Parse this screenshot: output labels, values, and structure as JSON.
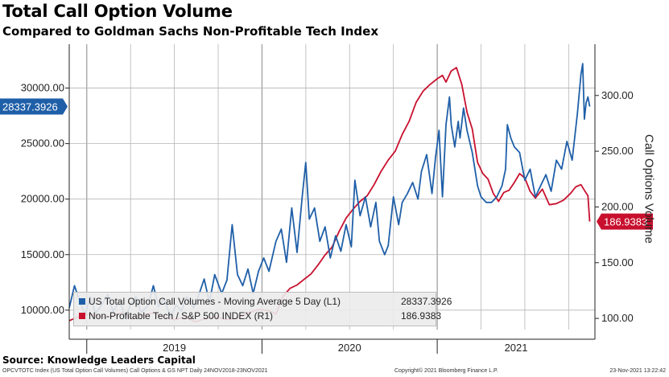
{
  "title": "Total Call Option Volume",
  "subtitle": "Compared to Goldman Sachs Non-Profitable Tech Index",
  "source": "Source: Knowledge Leaders Capital",
  "footer": {
    "left": "OPCVTOTC Index (US Total Option Call Volumes) Call Options & GS NPT  Daily 24NOV2018-23NOV2021",
    "center": "Copyright© 2021 Bloomberg Finance L.P.",
    "right": "23-Nov-2021 13:22:42"
  },
  "colors": {
    "series1": "#1f5fa8",
    "series2": "#c8102e"
  },
  "chart_data": {
    "type": "line",
    "title": "Total Call Option Volume",
    "subtitle": "Compared to Goldman Sachs Non-Profitable Tech Index",
    "xlabel": "",
    "y_left": {
      "ylim": [
        8250,
        33950
      ],
      "ticks": [
        "10000.00",
        "15000.00",
        "20000.00",
        "25000.00",
        "30000.00"
      ]
    },
    "y_right": {
      "label": "Call Options Volume",
      "ylim": [
        90,
        346
      ],
      "ticks": [
        "100.00",
        "150.00",
        "200.00",
        "250.00",
        "300.00"
      ]
    },
    "x_range": [
      2018.9,
      2021.9
    ],
    "x_labels": [
      {
        "label": "2019",
        "x": 2019.5
      },
      {
        "label": "2020",
        "x": 2020.5
      },
      {
        "label": "2021",
        "x": 2021.45
      }
    ],
    "grid": true,
    "legend_position": "bottom-left",
    "series": [
      {
        "name": "US Total Option Call Volumes - Moving Average 5 Day (L1)",
        "legend_value": "28337.3926",
        "last_value_label": "28337.3926",
        "axis": "left",
        "color": "#1f5fa8",
        "points": [
          [
            2018.9,
            10200
          ],
          [
            2018.93,
            12200
          ],
          [
            2018.96,
            10800
          ],
          [
            2018.99,
            9600
          ],
          [
            2019.02,
            11200
          ],
          [
            2019.05,
            9700
          ],
          [
            2019.09,
            10600
          ],
          [
            2019.12,
            11400
          ],
          [
            2019.15,
            9900
          ],
          [
            2019.19,
            10800
          ],
          [
            2019.22,
            9300
          ],
          [
            2019.25,
            10500
          ],
          [
            2019.28,
            11200
          ],
          [
            2019.31,
            9800
          ],
          [
            2019.35,
            10400
          ],
          [
            2019.38,
            12200
          ],
          [
            2019.41,
            10300
          ],
          [
            2019.44,
            11000
          ],
          [
            2019.48,
            9400
          ],
          [
            2019.51,
            10500
          ],
          [
            2019.54,
            9900
          ],
          [
            2019.57,
            11200
          ],
          [
            2019.61,
            10200
          ],
          [
            2019.64,
            11400
          ],
          [
            2019.67,
            12800
          ],
          [
            2019.7,
            10700
          ],
          [
            2019.73,
            13200
          ],
          [
            2019.77,
            11500
          ],
          [
            2019.8,
            12700
          ],
          [
            2019.83,
            17700
          ],
          [
            2019.86,
            13200
          ],
          [
            2019.89,
            12200
          ],
          [
            2019.92,
            13700
          ],
          [
            2019.95,
            11500
          ],
          [
            2019.98,
            13500
          ],
          [
            2020.01,
            14700
          ],
          [
            2020.04,
            13500
          ],
          [
            2020.08,
            16200
          ],
          [
            2020.11,
            17300
          ],
          [
            2020.14,
            14300
          ],
          [
            2020.17,
            19200
          ],
          [
            2020.2,
            15200
          ],
          [
            2020.23,
            20300
          ],
          [
            2020.25,
            23300
          ],
          [
            2020.27,
            18200
          ],
          [
            2020.3,
            19200
          ],
          [
            2020.33,
            16200
          ],
          [
            2020.36,
            17500
          ],
          [
            2020.39,
            14700
          ],
          [
            2020.42,
            16700
          ],
          [
            2020.45,
            15300
          ],
          [
            2020.48,
            17700
          ],
          [
            2020.51,
            15700
          ],
          [
            2020.53,
            21700
          ],
          [
            2020.56,
            18500
          ],
          [
            2020.59,
            20200
          ],
          [
            2020.62,
            17500
          ],
          [
            2020.65,
            19700
          ],
          [
            2020.67,
            16200
          ],
          [
            2020.7,
            15000
          ],
          [
            2020.72,
            15800
          ],
          [
            2020.75,
            20200
          ],
          [
            2020.78,
            17700
          ],
          [
            2020.8,
            19700
          ],
          [
            2020.83,
            20500
          ],
          [
            2020.86,
            21500
          ],
          [
            2020.89,
            20000
          ],
          [
            2020.91,
            22500
          ],
          [
            2020.94,
            24000
          ],
          [
            2020.97,
            20500
          ],
          [
            2020.99,
            23700
          ],
          [
            2021.01,
            26200
          ],
          [
            2021.03,
            20200
          ],
          [
            2021.05,
            26700
          ],
          [
            2021.07,
            29200
          ],
          [
            2021.08,
            26700
          ],
          [
            2021.1,
            24700
          ],
          [
            2021.12,
            27000
          ],
          [
            2021.13,
            25500
          ],
          [
            2021.15,
            28200
          ],
          [
            2021.17,
            26200
          ],
          [
            2021.2,
            24200
          ],
          [
            2021.23,
            21200
          ],
          [
            2021.25,
            20200
          ],
          [
            2021.28,
            19700
          ],
          [
            2021.31,
            19700
          ],
          [
            2021.34,
            20200
          ],
          [
            2021.37,
            21200
          ],
          [
            2021.39,
            22700
          ],
          [
            2021.4,
            26700
          ],
          [
            2021.42,
            25500
          ],
          [
            2021.44,
            24700
          ],
          [
            2021.47,
            24200
          ],
          [
            2021.5,
            21700
          ],
          [
            2021.53,
            22700
          ],
          [
            2021.56,
            20200
          ],
          [
            2021.59,
            21200
          ],
          [
            2021.62,
            22200
          ],
          [
            2021.65,
            20700
          ],
          [
            2021.68,
            23500
          ],
          [
            2021.71,
            22700
          ],
          [
            2021.74,
            25200
          ],
          [
            2021.77,
            23500
          ],
          [
            2021.8,
            27700
          ],
          [
            2021.82,
            31200
          ],
          [
            2021.83,
            32200
          ],
          [
            2021.84,
            27200
          ],
          [
            2021.85,
            28700
          ],
          [
            2021.86,
            29200
          ],
          [
            2021.87,
            28337
          ]
        ]
      },
      {
        "name": "Non-Profitable Tech / S&P 500 INDEX (R1)",
        "legend_value": "186.9383",
        "last_value_label": "186.9383",
        "axis": "right",
        "color": "#c8102e",
        "points": [
          [
            2018.9,
            98
          ],
          [
            2018.96,
            102
          ],
          [
            2019.02,
            104
          ],
          [
            2019.08,
            101
          ],
          [
            2019.14,
            102
          ],
          [
            2019.2,
            105
          ],
          [
            2019.26,
            100
          ],
          [
            2019.32,
            103
          ],
          [
            2019.38,
            105
          ],
          [
            2019.44,
            101
          ],
          [
            2019.5,
            99
          ],
          [
            2019.56,
            101
          ],
          [
            2019.62,
            97
          ],
          [
            2019.68,
            100
          ],
          [
            2019.74,
            101
          ],
          [
            2019.8,
            99
          ],
          [
            2019.86,
            100
          ],
          [
            2019.92,
            105
          ],
          [
            2019.98,
            108
          ],
          [
            2020.04,
            107
          ],
          [
            2020.08,
            104
          ],
          [
            2020.12,
            120
          ],
          [
            2020.16,
            127
          ],
          [
            2020.2,
            130
          ],
          [
            2020.24,
            135
          ],
          [
            2020.28,
            140
          ],
          [
            2020.32,
            148
          ],
          [
            2020.36,
            157
          ],
          [
            2020.4,
            164
          ],
          [
            2020.44,
            178
          ],
          [
            2020.48,
            190
          ],
          [
            2020.52,
            198
          ],
          [
            2020.56,
            205
          ],
          [
            2020.6,
            210
          ],
          [
            2020.64,
            220
          ],
          [
            2020.68,
            232
          ],
          [
            2020.72,
            242
          ],
          [
            2020.76,
            250
          ],
          [
            2020.8,
            265
          ],
          [
            2020.84,
            277
          ],
          [
            2020.88,
            294
          ],
          [
            2020.92,
            304
          ],
          [
            2020.96,
            310
          ],
          [
            2021.0,
            315
          ],
          [
            2021.03,
            318
          ],
          [
            2021.05,
            312
          ],
          [
            2021.08,
            322
          ],
          [
            2021.11,
            325
          ],
          [
            2021.14,
            310
          ],
          [
            2021.17,
            285
          ],
          [
            2021.2,
            270
          ],
          [
            2021.23,
            240
          ],
          [
            2021.26,
            230
          ],
          [
            2021.29,
            225
          ],
          [
            2021.32,
            212
          ],
          [
            2021.35,
            205
          ],
          [
            2021.38,
            213
          ],
          [
            2021.41,
            215
          ],
          [
            2021.44,
            222
          ],
          [
            2021.47,
            230
          ],
          [
            2021.5,
            226
          ],
          [
            2021.53,
            214
          ],
          [
            2021.56,
            208
          ],
          [
            2021.6,
            216
          ],
          [
            2021.64,
            202
          ],
          [
            2021.68,
            203
          ],
          [
            2021.72,
            206
          ],
          [
            2021.76,
            212
          ],
          [
            2021.79,
            218
          ],
          [
            2021.82,
            220
          ],
          [
            2021.84,
            215
          ],
          [
            2021.86,
            210
          ],
          [
            2021.87,
            186.94
          ]
        ]
      }
    ]
  }
}
